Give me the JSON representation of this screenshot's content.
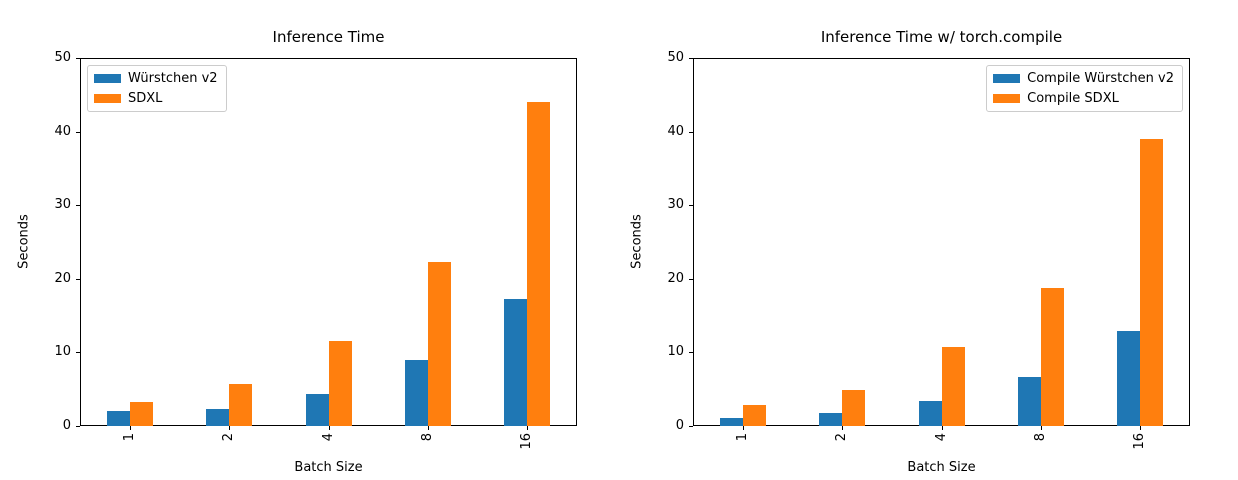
{
  "figure": {
    "background": "#ffffff"
  },
  "chart_data": [
    {
      "type": "bar",
      "title": "Inference Time",
      "categories": [
        "1",
        "2",
        "4",
        "8",
        "16"
      ],
      "series": [
        {
          "name": "Würstchen v2",
          "color": "#1f77b4",
          "values": [
            2.0,
            2.3,
            4.4,
            9.0,
            17.3
          ]
        },
        {
          "name": "SDXL",
          "color": "#ff7f0e",
          "values": [
            3.3,
            5.7,
            11.6,
            22.3,
            44.0
          ]
        }
      ],
      "xlabel": "Batch Size",
      "ylabel": "Seconds",
      "ylim": [
        0,
        50
      ],
      "yticks": [
        0,
        10,
        20,
        30,
        40,
        50
      ],
      "grid": false,
      "legend_position": "upper-left"
    },
    {
      "type": "bar",
      "title": "Inference Time w/ torch.compile",
      "categories": [
        "1",
        "2",
        "4",
        "8",
        "16"
      ],
      "series": [
        {
          "name": "Compile Würstchen v2",
          "color": "#1f77b4",
          "values": [
            1.1,
            1.8,
            3.4,
            6.6,
            12.9
          ]
        },
        {
          "name": "Compile SDXL",
          "color": "#ff7f0e",
          "values": [
            2.9,
            4.9,
            10.8,
            18.8,
            39.0
          ]
        }
      ],
      "xlabel": "Batch Size",
      "ylabel": "Seconds",
      "ylim": [
        0,
        50
      ],
      "yticks": [
        0,
        10,
        20,
        30,
        40,
        50
      ],
      "grid": false,
      "legend_position": "upper-right"
    }
  ]
}
